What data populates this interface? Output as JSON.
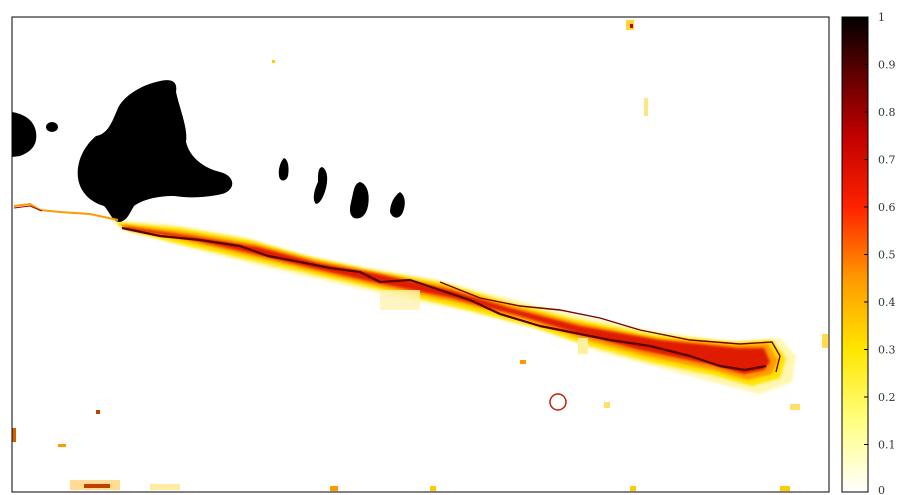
{
  "chart_data": {
    "type": "heatmap",
    "title": "",
    "xlabel": "",
    "ylabel": "",
    "grid": false,
    "legend": "none",
    "colormap": {
      "name": "hot (reversed)",
      "range": [
        0,
        1
      ],
      "stops": [
        {
          "value": 0.0,
          "color": "#ffffff"
        },
        {
          "value": 0.15,
          "color": "#ffff80"
        },
        {
          "value": 0.3,
          "color": "#ffe600"
        },
        {
          "value": 0.45,
          "color": "#ff9900"
        },
        {
          "value": 0.6,
          "color": "#ff2200"
        },
        {
          "value": 0.75,
          "color": "#c00000"
        },
        {
          "value": 0.9,
          "color": "#500000"
        },
        {
          "value": 1.0,
          "color": "#000000"
        }
      ]
    },
    "colorbar": {
      "ticks": [
        0,
        0.1,
        0.2,
        0.3,
        0.4,
        0.5,
        0.6,
        0.7,
        0.8,
        0.9,
        1
      ],
      "tick_labels": [
        "0",
        "0.1",
        "0.2",
        "0.3",
        "0.4",
        "0.5",
        "0.6",
        "0.7",
        "0.8",
        "0.9",
        "1"
      ]
    },
    "features": [
      {
        "name": "main diagonal band",
        "peak_value": 0.95,
        "edge_value": 0.3
      },
      {
        "name": "saturated blobs",
        "value": 1.0
      }
    ]
  }
}
